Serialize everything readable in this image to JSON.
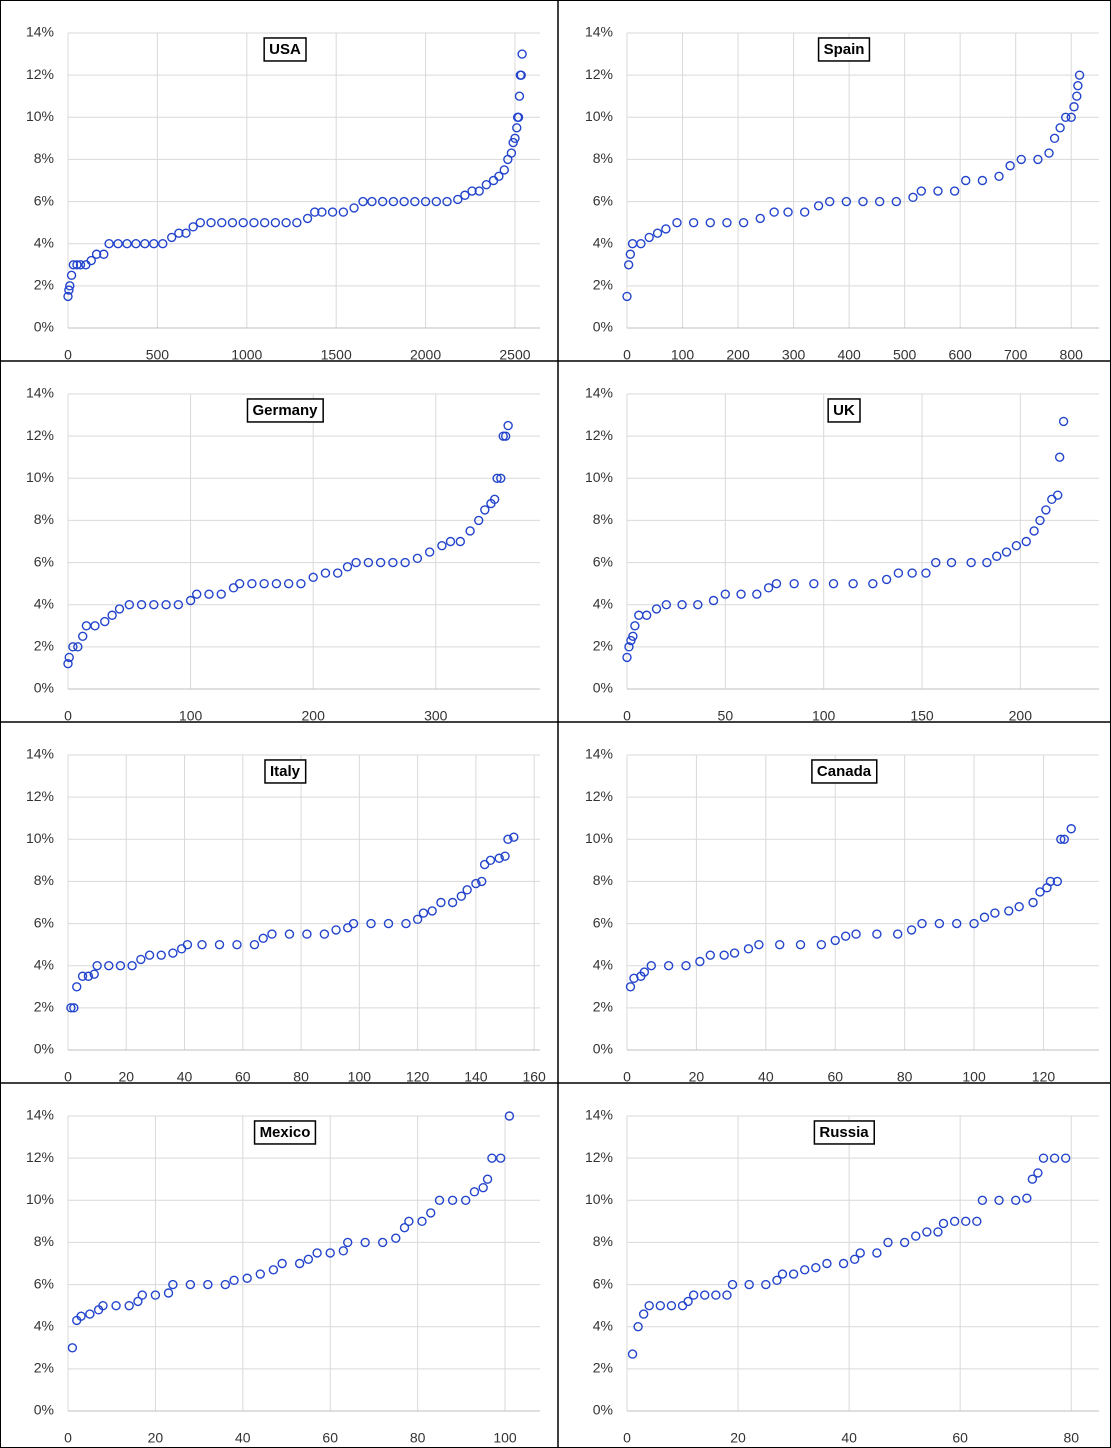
{
  "chart_data": [
    {
      "type": "scatter",
      "title": "USA",
      "color": "#2244cc",
      "grid": true,
      "x": [
        0,
        5,
        10,
        20,
        30,
        50,
        70,
        100,
        130,
        160,
        200,
        230,
        280,
        330,
        380,
        430,
        480,
        530,
        580,
        620,
        660,
        700,
        740,
        800,
        860,
        920,
        980,
        1040,
        1100,
        1160,
        1220,
        1280,
        1340,
        1380,
        1420,
        1480,
        1540,
        1600,
        1650,
        1700,
        1760,
        1820,
        1880,
        1940,
        2000,
        2060,
        2120,
        2180,
        2220,
        2260,
        2300,
        2340,
        2380,
        2410,
        2440,
        2460,
        2480,
        2490,
        2500,
        2510,
        2515,
        2520,
        2525,
        2530,
        2535,
        2540
      ],
      "values": [
        1.5,
        1.8,
        2,
        2.5,
        3,
        3,
        3,
        3,
        3.2,
        3.5,
        3.5,
        4,
        4,
        4,
        4,
        4,
        4,
        4,
        4.3,
        4.5,
        4.5,
        4.8,
        5,
        5,
        5,
        5,
        5,
        5,
        5,
        5,
        5,
        5,
        5.2,
        5.5,
        5.5,
        5.5,
        5.5,
        5.7,
        6,
        6,
        6,
        6,
        6,
        6,
        6,
        6,
        6,
        6.1,
        6.3,
        6.5,
        6.5,
        6.8,
        7,
        7.2,
        7.5,
        8,
        8.3,
        8.8,
        9,
        9.5,
        10,
        10,
        11,
        12,
        12,
        13
      ],
      "xlim": [
        0,
        2640
      ],
      "xticks": [
        0,
        500,
        1000,
        1500,
        2000,
        2500
      ],
      "ylim": [
        0,
        14
      ],
      "yticks": [
        {
          "value": 0,
          "label": "0%"
        },
        {
          "value": 2,
          "label": "2%"
        },
        {
          "value": 4,
          "label": "4%"
        },
        {
          "value": 6,
          "label": "6%"
        },
        {
          "value": 8,
          "label": "8%"
        },
        {
          "value": 10,
          "label": "10%"
        },
        {
          "value": 12,
          "label": "12%"
        },
        {
          "value": 14,
          "label": "14%"
        }
      ]
    },
    {
      "type": "scatter",
      "title": "Spain",
      "color": "#2244cc",
      "grid": true,
      "x": [
        0,
        3,
        6,
        10,
        25,
        40,
        55,
        70,
        90,
        120,
        150,
        180,
        210,
        240,
        265,
        290,
        320,
        345,
        365,
        395,
        425,
        455,
        485,
        515,
        530,
        560,
        590,
        610,
        640,
        670,
        690,
        710,
        740,
        760,
        770,
        780,
        790,
        800,
        805,
        810,
        812,
        815
      ],
      "values": [
        1.5,
        3,
        3.5,
        4,
        4,
        4.3,
        4.5,
        4.7,
        5,
        5,
        5,
        5,
        5,
        5.2,
        5.5,
        5.5,
        5.5,
        5.8,
        6,
        6,
        6,
        6,
        6,
        6.2,
        6.5,
        6.5,
        6.5,
        7,
        7,
        7.2,
        7.7,
        8,
        8,
        8.3,
        9,
        9.5,
        10,
        10,
        10.5,
        11,
        11.5,
        12
      ],
      "xlim": [
        0,
        850
      ],
      "xticks": [
        0,
        100,
        200,
        300,
        400,
        500,
        600,
        700,
        800
      ],
      "ylim": [
        0,
        14
      ],
      "yticks": [
        {
          "value": 0,
          "label": "0%"
        },
        {
          "value": 2,
          "label": "2%"
        },
        {
          "value": 4,
          "label": "4%"
        },
        {
          "value": 6,
          "label": "6%"
        },
        {
          "value": 8,
          "label": "8%"
        },
        {
          "value": 10,
          "label": "10%"
        },
        {
          "value": 12,
          "label": "12%"
        },
        {
          "value": 14,
          "label": "14%"
        }
      ]
    },
    {
      "type": "scatter",
      "title": "Germany",
      "color": "#2244cc",
      "grid": true,
      "x": [
        0,
        1,
        4,
        8,
        12,
        15,
        22,
        30,
        36,
        42,
        50,
        60,
        70,
        80,
        90,
        100,
        105,
        115,
        125,
        135,
        140,
        150,
        160,
        170,
        180,
        190,
        200,
        210,
        220,
        228,
        235,
        245,
        255,
        265,
        275,
        285,
        295,
        305,
        312,
        320,
        328,
        335,
        340,
        345,
        348,
        350,
        353,
        355,
        357,
        359
      ],
      "values": [
        1.2,
        1.5,
        2,
        2,
        2.5,
        3,
        3,
        3.2,
        3.5,
        3.8,
        4,
        4,
        4,
        4,
        4,
        4.2,
        4.5,
        4.5,
        4.5,
        4.8,
        5,
        5,
        5,
        5,
        5,
        5,
        5.3,
        5.5,
        5.5,
        5.8,
        6,
        6,
        6,
        6,
        6,
        6.2,
        6.5,
        6.8,
        7,
        7,
        7.5,
        8,
        8.5,
        8.8,
        9,
        10,
        10,
        12,
        12,
        12.5
      ],
      "xlim": [
        0,
        385
      ],
      "xticks": [
        0,
        100,
        200,
        300
      ],
      "ylim": [
        0,
        14
      ],
      "yticks": [
        {
          "value": 0,
          "label": "0%"
        },
        {
          "value": 2,
          "label": "2%"
        },
        {
          "value": 4,
          "label": "4%"
        },
        {
          "value": 6,
          "label": "6%"
        },
        {
          "value": 8,
          "label": "8%"
        },
        {
          "value": 10,
          "label": "10%"
        },
        {
          "value": 12,
          "label": "12%"
        },
        {
          "value": 14,
          "label": "14%"
        }
      ]
    },
    {
      "type": "scatter",
      "title": "UK",
      "color": "#2244cc",
      "grid": true,
      "x": [
        0,
        1,
        2,
        3,
        4,
        6,
        10,
        15,
        20,
        28,
        36,
        44,
        50,
        58,
        66,
        72,
        76,
        85,
        95,
        105,
        115,
        125,
        132,
        138,
        145,
        152,
        157,
        165,
        175,
        183,
        188,
        193,
        198,
        203,
        207,
        210,
        213,
        216,
        219,
        220,
        222
      ],
      "values": [
        1.5,
        2,
        2.3,
        2.5,
        3,
        3.5,
        3.5,
        3.8,
        4,
        4,
        4,
        4.2,
        4.5,
        4.5,
        4.5,
        4.8,
        5,
        5,
        5,
        5,
        5,
        5,
        5.2,
        5.5,
        5.5,
        5.5,
        6,
        6,
        6,
        6,
        6.3,
        6.5,
        6.8,
        7,
        7.5,
        8,
        8.5,
        9,
        9.2,
        11,
        12.7
      ],
      "xlim": [
        0,
        240
      ],
      "xticks": [
        0,
        50,
        100,
        150,
        200
      ],
      "ylim": [
        0,
        14
      ],
      "yticks": [
        {
          "value": 0,
          "label": "0%"
        },
        {
          "value": 2,
          "label": "2%"
        },
        {
          "value": 4,
          "label": "4%"
        },
        {
          "value": 6,
          "label": "6%"
        },
        {
          "value": 8,
          "label": "8%"
        },
        {
          "value": 10,
          "label": "10%"
        },
        {
          "value": 12,
          "label": "12%"
        },
        {
          "value": 14,
          "label": "14%"
        }
      ]
    },
    {
      "type": "scatter",
      "title": "Italy",
      "color": "#2244cc",
      "grid": true,
      "x": [
        1,
        2,
        3,
        5,
        7,
        9,
        10,
        14,
        18,
        22,
        25,
        28,
        32,
        36,
        39,
        41,
        46,
        52,
        58,
        64,
        67,
        70,
        76,
        82,
        88,
        92,
        96,
        98,
        104,
        110,
        116,
        120,
        122,
        125,
        128,
        132,
        135,
        137,
        140,
        142,
        143,
        145,
        148,
        150,
        151,
        153
      ],
      "values": [
        2,
        2,
        3,
        3.5,
        3.5,
        3.6,
        4,
        4,
        4,
        4,
        4.3,
        4.5,
        4.5,
        4.6,
        4.8,
        5,
        5,
        5,
        5,
        5,
        5.3,
        5.5,
        5.5,
        5.5,
        5.5,
        5.7,
        5.8,
        6,
        6,
        6,
        6,
        6.2,
        6.5,
        6.6,
        7,
        7,
        7.3,
        7.6,
        7.9,
        8,
        8.8,
        9,
        9.1,
        9.2,
        10,
        10.1
      ],
      "xlim": [
        0,
        162
      ],
      "xticks": [
        0,
        20,
        40,
        60,
        80,
        100,
        120,
        140,
        160
      ],
      "ylim": [
        0,
        14
      ],
      "yticks": [
        {
          "value": 0,
          "label": "0%"
        },
        {
          "value": 2,
          "label": "2%"
        },
        {
          "value": 4,
          "label": "4%"
        },
        {
          "value": 6,
          "label": "6%"
        },
        {
          "value": 8,
          "label": "8%"
        },
        {
          "value": 10,
          "label": "10%"
        },
        {
          "value": 12,
          "label": "12%"
        },
        {
          "value": 14,
          "label": "14%"
        }
      ]
    },
    {
      "type": "scatter",
      "title": "Canada",
      "color": "#2244cc",
      "grid": true,
      "x": [
        1,
        2,
        4,
        5,
        7,
        12,
        17,
        21,
        24,
        28,
        31,
        35,
        38,
        44,
        50,
        56,
        60,
        63,
        66,
        72,
        78,
        82,
        85,
        90,
        95,
        100,
        103,
        106,
        110,
        113,
        117,
        119,
        121,
        122,
        124,
        125,
        126,
        128
      ],
      "values": [
        3,
        3.4,
        3.5,
        3.7,
        4,
        4,
        4,
        4.2,
        4.5,
        4.5,
        4.6,
        4.8,
        5,
        5,
        5,
        5,
        5.2,
        5.4,
        5.5,
        5.5,
        5.5,
        5.7,
        6,
        6,
        6,
        6,
        6.3,
        6.5,
        6.6,
        6.8,
        7,
        7.5,
        7.7,
        8,
        8,
        10,
        10,
        10.5
      ],
      "xlim": [
        0,
        136
      ],
      "xticks": [
        0,
        20,
        40,
        60,
        80,
        100,
        120
      ],
      "ylim": [
        0,
        14
      ],
      "yticks": [
        {
          "value": 0,
          "label": "0%"
        },
        {
          "value": 2,
          "label": "2%"
        },
        {
          "value": 4,
          "label": "4%"
        },
        {
          "value": 6,
          "label": "6%"
        },
        {
          "value": 8,
          "label": "8%"
        },
        {
          "value": 10,
          "label": "10%"
        },
        {
          "value": 12,
          "label": "12%"
        },
        {
          "value": 14,
          "label": "14%"
        }
      ]
    },
    {
      "type": "scatter",
      "title": "Mexico",
      "color": "#2244cc",
      "grid": true,
      "x": [
        1,
        2,
        3,
        5,
        7,
        8,
        11,
        14,
        16,
        17,
        20,
        23,
        24,
        28,
        32,
        36,
        38,
        41,
        44,
        47,
        49,
        53,
        55,
        57,
        60,
        63,
        64,
        68,
        72,
        75,
        77,
        78,
        81,
        83,
        85,
        88,
        91,
        93,
        95,
        96,
        97,
        99,
        101
      ],
      "values": [
        3,
        4.3,
        4.5,
        4.6,
        4.8,
        5,
        5,
        5,
        5.2,
        5.5,
        5.5,
        5.6,
        6,
        6,
        6,
        6,
        6.2,
        6.3,
        6.5,
        6.7,
        7,
        7,
        7.2,
        7.5,
        7.5,
        7.6,
        8,
        8,
        8,
        8.2,
        8.7,
        9,
        9,
        9.4,
        10,
        10,
        10,
        10.4,
        10.6,
        11,
        12,
        12,
        14
      ],
      "xlim": [
        0,
        108
      ],
      "xticks": [
        0,
        20,
        40,
        60,
        80,
        100
      ],
      "ylim": [
        0,
        14
      ],
      "yticks": [
        {
          "value": 0,
          "label": "0%"
        },
        {
          "value": 2,
          "label": "2%"
        },
        {
          "value": 4,
          "label": "4%"
        },
        {
          "value": 6,
          "label": "6%"
        },
        {
          "value": 8,
          "label": "8%"
        },
        {
          "value": 10,
          "label": "10%"
        },
        {
          "value": 12,
          "label": "12%"
        },
        {
          "value": 14,
          "label": "14%"
        }
      ]
    },
    {
      "type": "scatter",
      "title": "Russia",
      "color": "#2244cc",
      "grid": true,
      "x": [
        1,
        2,
        3,
        4,
        6,
        8,
        10,
        11,
        12,
        14,
        16,
        18,
        19,
        22,
        25,
        27,
        28,
        30,
        32,
        34,
        36,
        39,
        41,
        42,
        45,
        47,
        50,
        52,
        54,
        56,
        57,
        59,
        61,
        63,
        64,
        67,
        70,
        72,
        73,
        74,
        75,
        77,
        79
      ],
      "values": [
        2.7,
        4,
        4.6,
        5,
        5,
        5,
        5,
        5.2,
        5.5,
        5.5,
        5.5,
        5.5,
        6,
        6,
        6,
        6.2,
        6.5,
        6.5,
        6.7,
        6.8,
        7,
        7,
        7.2,
        7.5,
        7.5,
        8,
        8,
        8.3,
        8.5,
        8.5,
        8.9,
        9,
        9,
        9,
        10,
        10,
        10,
        10.1,
        11,
        11.3,
        12,
        12,
        12
      ],
      "xlim": [
        0,
        85
      ],
      "xticks": [
        0,
        20,
        40,
        60,
        80
      ],
      "ylim": [
        0,
        14
      ],
      "yticks": [
        {
          "value": 0,
          "label": "0%"
        },
        {
          "value": 2,
          "label": "2%"
        },
        {
          "value": 4,
          "label": "4%"
        },
        {
          "value": 6,
          "label": "6%"
        },
        {
          "value": 8,
          "label": "8%"
        },
        {
          "value": 10,
          "label": "10%"
        },
        {
          "value": 12,
          "label": "12%"
        },
        {
          "value": 14,
          "label": "14%"
        }
      ]
    }
  ]
}
